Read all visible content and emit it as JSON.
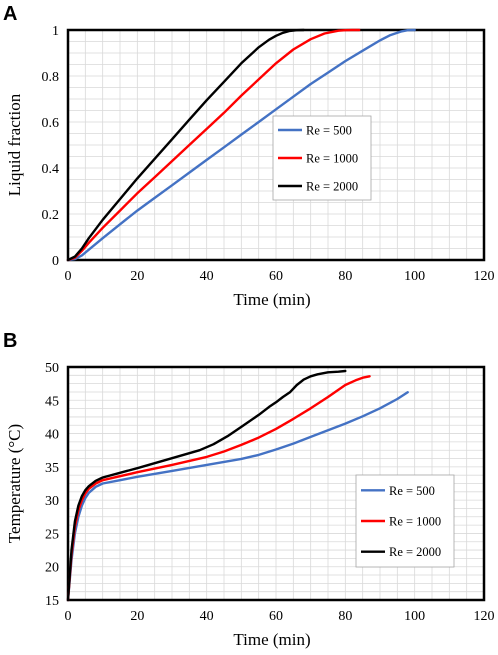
{
  "chart_data": [
    {
      "panel": "A",
      "type": "line",
      "xlabel": "Time (min)",
      "ylabel": "Liquid fraction",
      "xlim": [
        0,
        120
      ],
      "ylim": [
        0,
        1
      ],
      "xticks": [
        0,
        20,
        40,
        60,
        80,
        100,
        120
      ],
      "yticks": [
        0,
        0.2,
        0.4,
        0.6,
        0.8,
        1
      ],
      "ytick_labels": [
        "0",
        "0.2",
        "0.4",
        "0.6",
        "0.8",
        "1"
      ],
      "grid": true,
      "legend_position": "center-right",
      "series": [
        {
          "name": "Re = 500",
          "color": "#4472C4",
          "x": [
            0,
            2,
            4,
            6,
            10,
            15,
            20,
            25,
            30,
            35,
            40,
            45,
            50,
            55,
            60,
            65,
            70,
            75,
            80,
            85,
            90,
            93,
            96,
            98,
            100
          ],
          "y": [
            0,
            0.004,
            0.02,
            0.045,
            0.095,
            0.155,
            0.215,
            0.27,
            0.325,
            0.38,
            0.435,
            0.49,
            0.545,
            0.6,
            0.655,
            0.71,
            0.765,
            0.815,
            0.865,
            0.91,
            0.955,
            0.978,
            0.993,
            0.999,
            1.0
          ]
        },
        {
          "name": "Re = 1000",
          "color": "#FF0000",
          "x": [
            0,
            2,
            4,
            6,
            10,
            15,
            20,
            25,
            30,
            35,
            40,
            45,
            50,
            55,
            60,
            65,
            70,
            74,
            78,
            80,
            82,
            84
          ],
          "y": [
            0,
            0.01,
            0.04,
            0.075,
            0.14,
            0.215,
            0.29,
            0.36,
            0.43,
            0.5,
            0.57,
            0.64,
            0.715,
            0.785,
            0.855,
            0.915,
            0.96,
            0.985,
            0.997,
            0.999,
            1.0,
            1.0
          ]
        },
        {
          "name": "Re = 2000",
          "color": "#000000",
          "x": [
            0,
            2,
            4,
            6,
            10,
            15,
            20,
            25,
            30,
            35,
            40,
            45,
            50,
            55,
            58,
            60,
            62,
            64,
            66,
            68
          ],
          "y": [
            0,
            0.015,
            0.05,
            0.095,
            0.175,
            0.265,
            0.355,
            0.44,
            0.525,
            0.61,
            0.695,
            0.775,
            0.855,
            0.925,
            0.958,
            0.975,
            0.988,
            0.996,
            0.999,
            1.0
          ]
        }
      ]
    },
    {
      "panel": "B",
      "type": "line",
      "xlabel": "Time (min)",
      "ylabel": "Temperature (°C)",
      "xlim": [
        0,
        120
      ],
      "ylim": [
        15,
        50
      ],
      "xticks": [
        0,
        20,
        40,
        60,
        80,
        100,
        120
      ],
      "yticks": [
        15,
        20,
        25,
        30,
        35,
        40,
        45,
        50
      ],
      "ytick_labels": [
        "15",
        "20",
        "25",
        "30",
        "35",
        "40",
        "45",
        "50"
      ],
      "grid": true,
      "legend_position": "center-right",
      "series": [
        {
          "name": "Re = 500",
          "color": "#4472C4",
          "x": [
            0,
            1,
            2,
            3,
            4,
            5,
            6,
            8,
            10,
            15,
            20,
            30,
            40,
            50,
            55,
            60,
            65,
            70,
            75,
            80,
            85,
            90,
            95,
            98
          ],
          "y": [
            15,
            21,
            25,
            27.5,
            29.2,
            30.3,
            31.1,
            32.0,
            32.5,
            33.0,
            33.5,
            34.4,
            35.3,
            36.2,
            36.8,
            37.6,
            38.5,
            39.5,
            40.5,
            41.5,
            42.6,
            43.8,
            45.2,
            46.2
          ]
        },
        {
          "name": "Re = 1000",
          "color": "#FF0000",
          "x": [
            0,
            1,
            2,
            3,
            4,
            5,
            6,
            8,
            10,
            15,
            20,
            30,
            40,
            45,
            50,
            55,
            60,
            65,
            70,
            75,
            80,
            83,
            85,
            87
          ],
          "y": [
            15,
            21.8,
            26,
            28.5,
            30.0,
            31.0,
            31.7,
            32.5,
            33.0,
            33.6,
            34.2,
            35.3,
            36.5,
            37.3,
            38.3,
            39.4,
            40.7,
            42.2,
            43.8,
            45.5,
            47.3,
            48.0,
            48.4,
            48.6
          ]
        },
        {
          "name": "Re = 2000",
          "color": "#000000",
          "x": [
            0,
            1,
            2,
            3,
            4,
            5,
            6,
            8,
            10,
            15,
            20,
            30,
            38,
            42,
            46,
            50,
            55,
            58,
            60,
            62,
            64,
            66,
            68,
            70,
            72,
            75,
            78,
            80
          ],
          "y": [
            15,
            22.5,
            26.8,
            29.2,
            30.6,
            31.5,
            32.1,
            32.9,
            33.4,
            34.1,
            34.8,
            36.3,
            37.5,
            38.4,
            39.6,
            41.0,
            42.8,
            44.0,
            44.7,
            45.5,
            46.2,
            47.3,
            48.1,
            48.6,
            48.9,
            49.2,
            49.3,
            49.4
          ]
        }
      ]
    }
  ]
}
